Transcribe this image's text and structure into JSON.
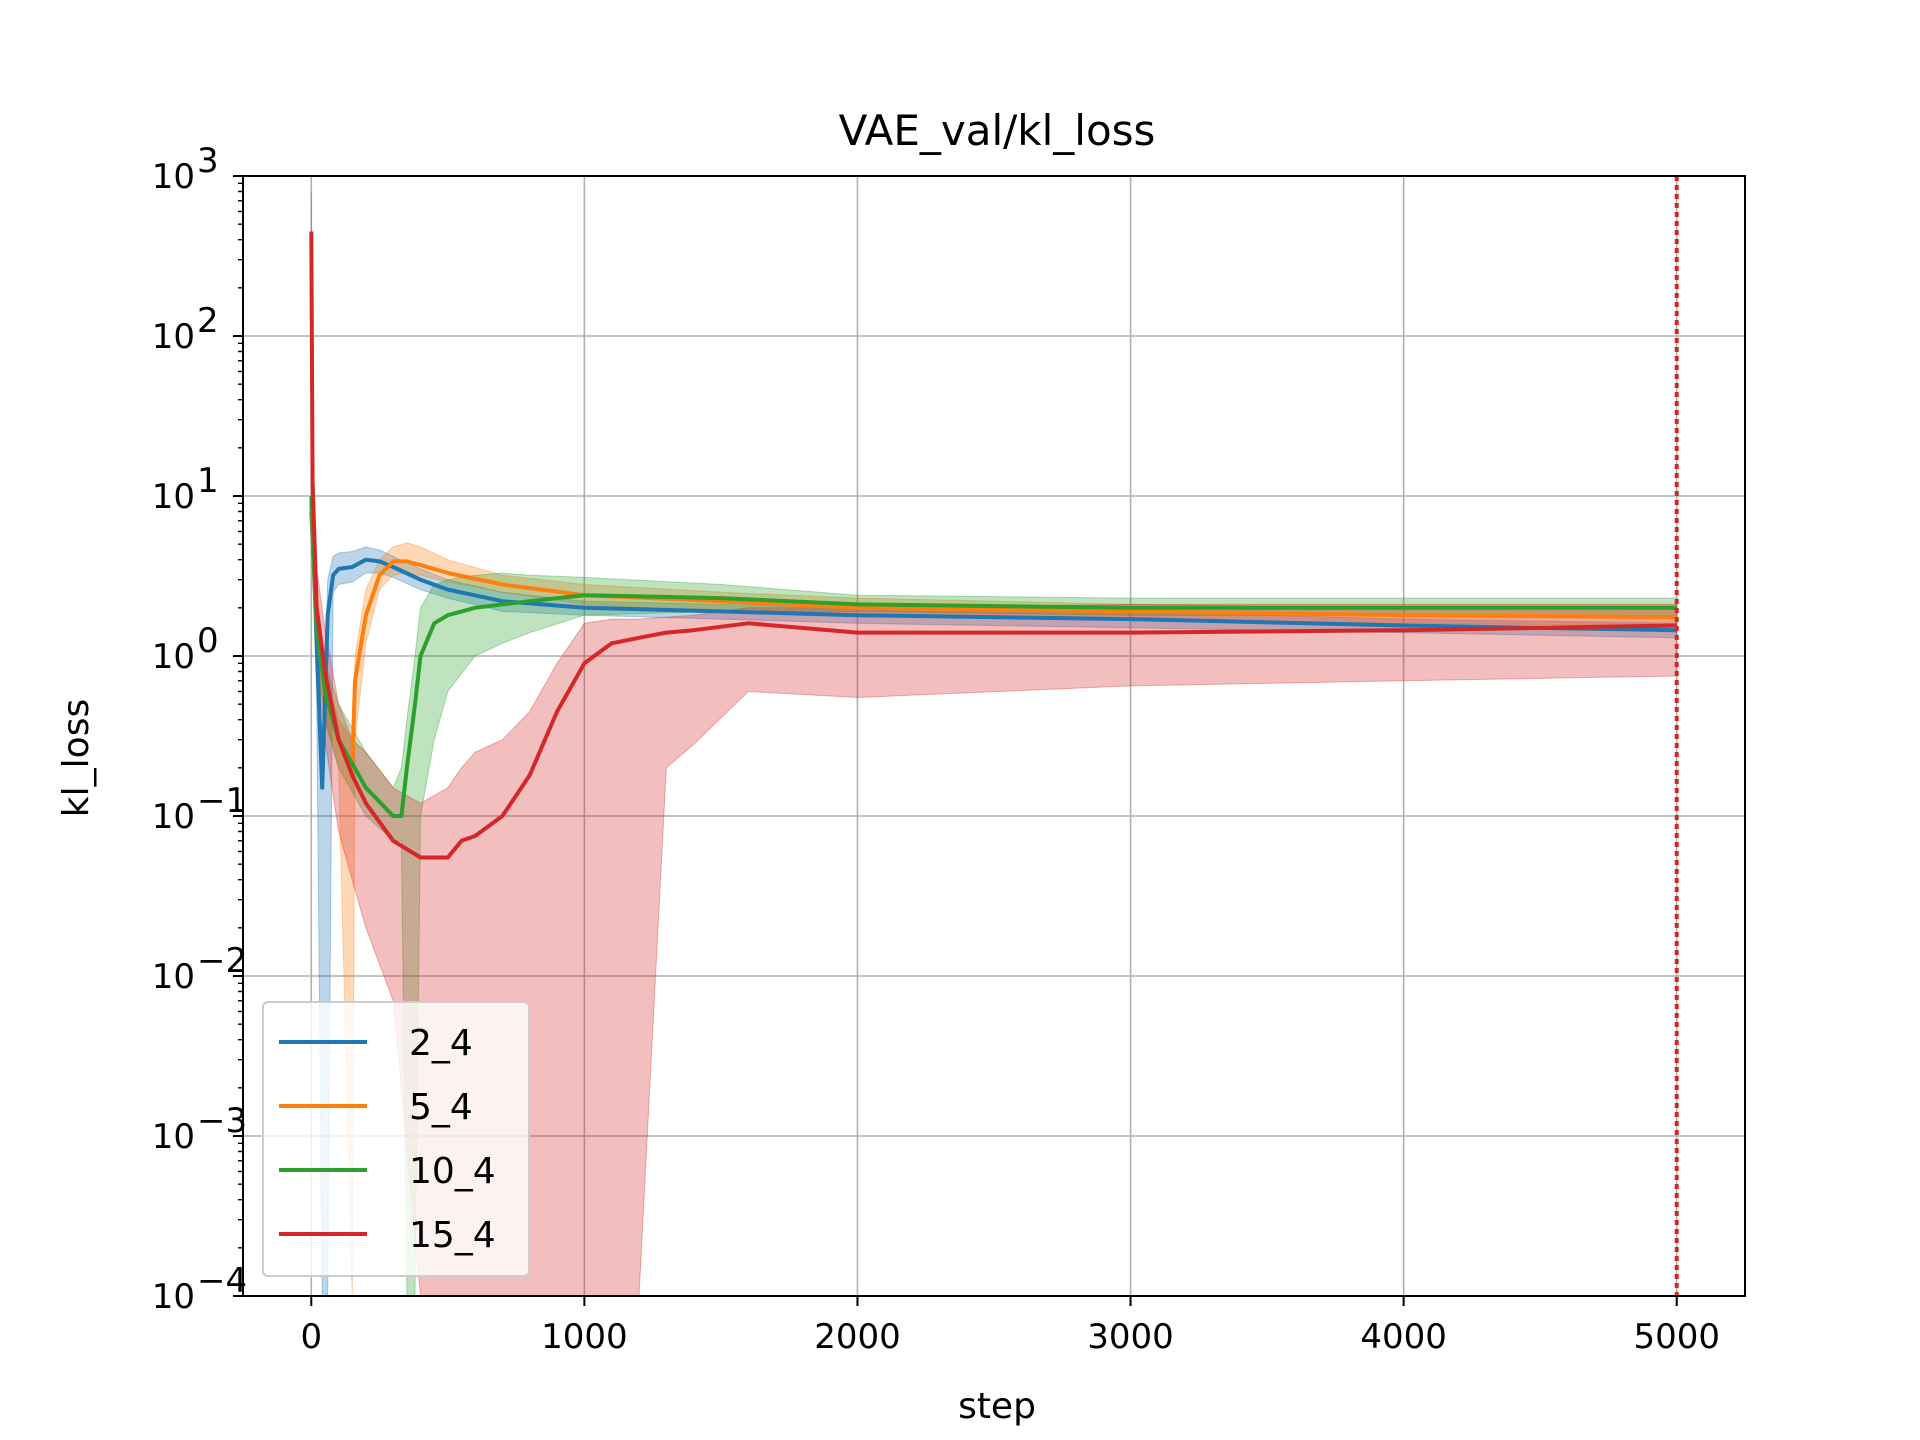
{
  "chart_data": {
    "type": "line",
    "title": "VAE_val/kl_loss",
    "xlabel": "step",
    "ylabel": "kl_loss",
    "x_scale": "linear",
    "y_scale": "log",
    "xlim": [
      -250,
      5250
    ],
    "ylim": [
      0.0001,
      1000
    ],
    "xticks": [
      0,
      1000,
      2000,
      3000,
      4000,
      5000
    ],
    "xtick_labels": [
      "0",
      "1000",
      "2000",
      "3000",
      "4000",
      "5000"
    ],
    "yticks": [
      {
        "value": 0.0001,
        "base": "10",
        "exp": "−4"
      },
      {
        "value": 0.001,
        "base": "10",
        "exp": "−3"
      },
      {
        "value": 0.01,
        "base": "10",
        "exp": "−2"
      },
      {
        "value": 0.1,
        "base": "10",
        "exp": "−1"
      },
      {
        "value": 1,
        "base": "10",
        "exp": "0"
      },
      {
        "value": 10,
        "base": "10",
        "exp": "1"
      },
      {
        "value": 100,
        "base": "10",
        "exp": "2"
      },
      {
        "value": 1000,
        "base": "10",
        "exp": "3"
      }
    ],
    "grid": true,
    "legend_position": "lower-left",
    "vline": {
      "x": 5000,
      "color": "#d62728",
      "style": "dotted"
    },
    "series": [
      {
        "name": "2_4",
        "color": "#1f77b4",
        "x": [
          0,
          10,
          20,
          40,
          60,
          80,
          100,
          150,
          200,
          250,
          300,
          400,
          500,
          700,
          1000,
          1500,
          2000,
          3000,
          4000,
          5000
        ],
        "y": [
          8,
          3.5,
          1.2,
          0.15,
          1.8,
          3.2,
          3.5,
          3.6,
          4.0,
          3.9,
          3.6,
          3.0,
          2.6,
          2.2,
          2.0,
          1.9,
          1.8,
          1.7,
          1.55,
          1.45
        ],
        "lower": [
          5,
          2,
          0.5,
          0.0001,
          0.0001,
          2.5,
          2.8,
          2.9,
          3.3,
          3.3,
          3.1,
          2.6,
          2.3,
          1.9,
          1.8,
          1.7,
          1.6,
          1.5,
          1.4,
          1.3
        ],
        "upper": [
          12,
          5,
          2.5,
          0.3,
          3,
          4.2,
          4.4,
          4.5,
          4.8,
          4.6,
          4.2,
          3.5,
          3.0,
          2.5,
          2.2,
          2.1,
          2.0,
          1.9,
          1.7,
          1.6
        ]
      },
      {
        "name": "5_4",
        "color": "#ff7f0e",
        "x": [
          0,
          20,
          50,
          100,
          150,
          160,
          200,
          250,
          300,
          350,
          400,
          500,
          700,
          1000,
          1500,
          2000,
          3000,
          4000,
          5000
        ],
        "y": [
          9,
          1.5,
          0.6,
          0.3,
          0.2,
          0.7,
          1.8,
          3.2,
          3.9,
          3.9,
          3.7,
          3.3,
          2.8,
          2.4,
          2.2,
          2.0,
          1.9,
          1.8,
          1.75
        ],
        "lower": [
          6,
          1.0,
          0.4,
          0.2,
          0.0001,
          0.3,
          1.2,
          2.6,
          3.2,
          3.3,
          3.2,
          2.9,
          2.5,
          2.1,
          1.9,
          1.8,
          1.7,
          1.6,
          1.55
        ],
        "upper": [
          13,
          2.0,
          0.8,
          0.4,
          0.3,
          1.0,
          2.6,
          4.0,
          4.8,
          5.1,
          4.8,
          4.0,
          3.2,
          2.8,
          2.5,
          2.3,
          2.1,
          2.0,
          1.95
        ]
      },
      {
        "name": "10_4",
        "color": "#2ca02c",
        "x": [
          0,
          20,
          50,
          100,
          200,
          300,
          330,
          350,
          380,
          400,
          450,
          500,
          600,
          700,
          800,
          1000,
          1500,
          2000,
          3000,
          4000,
          5000
        ],
        "y": [
          10,
          1.5,
          0.6,
          0.3,
          0.15,
          0.1,
          0.1,
          0.2,
          0.5,
          1.0,
          1.6,
          1.8,
          2.0,
          2.1,
          2.2,
          2.4,
          2.3,
          2.1,
          2.0,
          2.0,
          2.0
        ],
        "lower": [
          6,
          1.0,
          0.4,
          0.2,
          0.1,
          0.07,
          0.07,
          0.0001,
          0.0001,
          0.1,
          0.3,
          0.6,
          1.0,
          1.2,
          1.4,
          1.8,
          1.9,
          1.9,
          1.8,
          1.8,
          1.8
        ],
        "upper": [
          15,
          2.2,
          0.9,
          0.5,
          0.25,
          0.15,
          0.2,
          0.4,
          1.0,
          2.0,
          2.8,
          3.0,
          3.2,
          3.3,
          3.2,
          3.1,
          2.8,
          2.4,
          2.3,
          2.3,
          2.3
        ]
      },
      {
        "name": "15_4",
        "color": "#d62728",
        "x": [
          0,
          5,
          20,
          50,
          100,
          150,
          200,
          300,
          400,
          500,
          550,
          600,
          700,
          800,
          900,
          1000,
          1100,
          1200,
          1300,
          1400,
          1600,
          2000,
          3000,
          4000,
          5000
        ],
        "y": [
          450,
          12,
          2.0,
          0.8,
          0.3,
          0.18,
          0.12,
          0.07,
          0.055,
          0.055,
          0.07,
          0.075,
          0.1,
          0.18,
          0.45,
          0.9,
          1.2,
          1.3,
          1.4,
          1.45,
          1.6,
          1.4,
          1.4,
          1.45,
          1.55
        ],
        "lower": [
          300,
          6,
          1.0,
          0.3,
          0.08,
          0.04,
          0.02,
          0.007,
          0.0001,
          0.0001,
          0.0001,
          0.0001,
          0.0001,
          0.0001,
          0.0001,
          0.0001,
          0.0001,
          0.0001,
          0.2,
          0.28,
          0.6,
          0.55,
          0.65,
          0.7,
          0.75
        ],
        "upper": [
          800,
          25,
          3.5,
          1.5,
          0.5,
          0.3,
          0.25,
          0.15,
          0.12,
          0.15,
          0.2,
          0.25,
          0.3,
          0.45,
          0.9,
          1.6,
          1.7,
          1.7,
          1.75,
          1.8,
          2.0,
          2.0,
          2.1,
          2.1,
          2.1
        ]
      }
    ]
  }
}
